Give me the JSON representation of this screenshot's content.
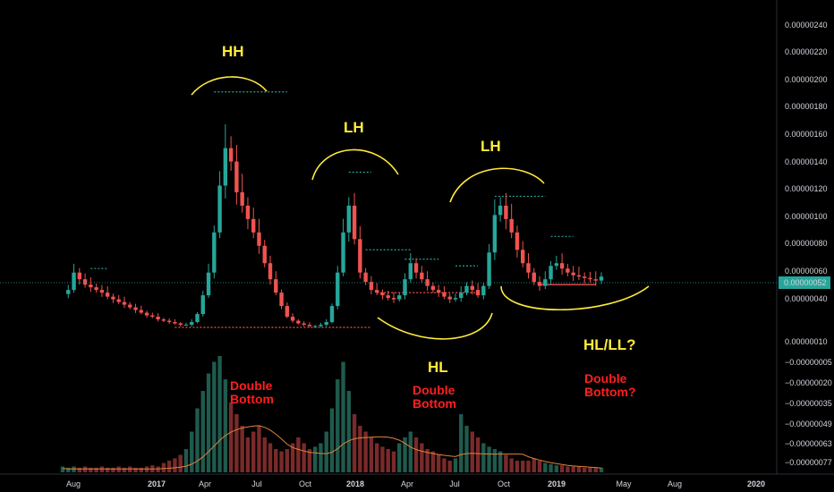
{
  "colors": {
    "background": "#000000",
    "up": "#26a69a",
    "down": "#ef5350",
    "annotation_yellow": "#ffeb3b",
    "annotation_red": "#ff1f1f",
    "ma_line": "#e0823a",
    "price_line": "#26a69a",
    "axis_text": "#d1d4dc"
  },
  "chart_data": {
    "type": "candlestick",
    "title": "",
    "price_axis": {
      "ticks": [
        "0.00000240",
        "0.00000220",
        "0.00000200",
        "0.00000180",
        "0.00000160",
        "0.00000140",
        "0.00000120",
        "0.00000100",
        "0.00000080",
        "0.00000060",
        "0.00000040",
        "0.00000010",
        "−0.00000005",
        "−0.00000020",
        "−0.00000035",
        "−0.00000049",
        "−0.00000063",
        "−0.00000077"
      ],
      "current_price": "0.00000052"
    },
    "time_axis": {
      "ticks": [
        {
          "label": "Aug",
          "bold": false
        },
        {
          "label": "2017",
          "bold": true
        },
        {
          "label": "Apr",
          "bold": false
        },
        {
          "label": "Jul",
          "bold": false
        },
        {
          "label": "Oct",
          "bold": false
        },
        {
          "label": "2018",
          "bold": true
        },
        {
          "label": "Apr",
          "bold": false
        },
        {
          "label": "Jul",
          "bold": false
        },
        {
          "label": "Oct",
          "bold": false
        },
        {
          "label": "2019",
          "bold": true
        },
        {
          "label": "May",
          "bold": false
        },
        {
          "label": "Aug",
          "bold": false
        },
        {
          "label": "2020",
          "bold": true
        }
      ]
    },
    "price_path": [
      0.39,
      0.42,
      0.55,
      0.5,
      0.46,
      0.44,
      0.42,
      0.4,
      0.37,
      0.35,
      0.33,
      0.31,
      0.29,
      0.27,
      0.25,
      0.23,
      0.22,
      0.2,
      0.19,
      0.18,
      0.17,
      0.16,
      0.16,
      0.18,
      0.24,
      0.38,
      0.55,
      0.85,
      1.2,
      1.48,
      1.38,
      1.15,
      1.05,
      0.95,
      0.85,
      0.75,
      0.62,
      0.5,
      0.4,
      0.3,
      0.22,
      0.19,
      0.17,
      0.16,
      0.15,
      0.15,
      0.16,
      0.18,
      0.3,
      0.55,
      0.85,
      1.05,
      0.8,
      0.55,
      0.48,
      0.42,
      0.4,
      0.38,
      0.36,
      0.35,
      0.38,
      0.5,
      0.62,
      0.55,
      0.5,
      0.45,
      0.42,
      0.4,
      0.37,
      0.35,
      0.36,
      0.4,
      0.45,
      0.42,
      0.38,
      0.45,
      0.7,
      0.98,
      1.05,
      0.95,
      0.85,
      0.72,
      0.62,
      0.55,
      0.48,
      0.45,
      0.5,
      0.6,
      0.62,
      0.58,
      0.55,
      0.53,
      0.52,
      0.51,
      0.5,
      0.49,
      0.52
    ],
    "volume_path": [
      0.05,
      0.04,
      0.05,
      0.04,
      0.05,
      0.04,
      0.04,
      0.05,
      0.04,
      0.04,
      0.05,
      0.04,
      0.05,
      0.04,
      0.04,
      0.05,
      0.06,
      0.05,
      0.08,
      0.1,
      0.12,
      0.15,
      0.2,
      0.35,
      0.55,
      0.7,
      0.85,
      0.95,
      1.0,
      0.8,
      0.6,
      0.5,
      0.4,
      0.3,
      0.35,
      0.4,
      0.3,
      0.25,
      0.2,
      0.18,
      0.2,
      0.25,
      0.3,
      0.25,
      0.2,
      0.22,
      0.25,
      0.35,
      0.55,
      0.8,
      0.95,
      0.7,
      0.5,
      0.4,
      0.35,
      0.3,
      0.25,
      0.22,
      0.2,
      0.18,
      0.25,
      0.3,
      0.35,
      0.3,
      0.25,
      0.2,
      0.18,
      0.15,
      0.12,
      0.1,
      0.12,
      0.5,
      0.4,
      0.35,
      0.3,
      0.25,
      0.22,
      0.2,
      0.18,
      0.15,
      0.12,
      0.1,
      0.1,
      0.1,
      0.12,
      0.1,
      0.08,
      0.07,
      0.06,
      0.06,
      0.05,
      0.05,
      0.05,
      0.04,
      0.04,
      0.04,
      0.04
    ],
    "support_resistance": [
      {
        "from": 0.58,
        "to": 0.58,
        "price": 0.58,
        "color": "#26a69a",
        "style": "dotted",
        "x0": 5,
        "x1": 8
      },
      {
        "price": 1.9,
        "color": "#26a69a",
        "style": "dotted",
        "x0": 27,
        "x1": 40
      },
      {
        "price": 1.3,
        "color": "#26a69a",
        "style": "dotted",
        "x0": 51,
        "x1": 55
      },
      {
        "price": 0.72,
        "color": "#26a69a",
        "style": "dotted",
        "x0": 54,
        "x1": 62
      },
      {
        "price": 0.65,
        "color": "#26a69a",
        "style": "dotted",
        "x0": 61,
        "x1": 67
      },
      {
        "price": 0.6,
        "color": "#26a69a",
        "style": "dotted",
        "x0": 70,
        "x1": 74
      },
      {
        "price": 1.12,
        "color": "#26a69a",
        "style": "dotted",
        "x0": 77,
        "x1": 86
      },
      {
        "price": 0.82,
        "color": "#26a69a",
        "style": "dotted",
        "x0": 87,
        "x1": 91
      },
      {
        "price": 0.14,
        "color": "#ef5350",
        "style": "dotted",
        "x0": 20,
        "x1": 55
      },
      {
        "price": 0.4,
        "color": "#ef5350",
        "style": "dotted",
        "x0": 56,
        "x1": 74
      },
      {
        "price": 0.46,
        "color": "#ef5350",
        "style": "solid",
        "x0": 85,
        "x1": 95
      }
    ],
    "annotations": [
      {
        "text": "HH",
        "color": "yellow"
      },
      {
        "text": "LH",
        "color": "yellow"
      },
      {
        "text": "LH",
        "color": "yellow"
      },
      {
        "text": "HL",
        "color": "yellow"
      },
      {
        "text": "HL/LL?",
        "color": "yellow"
      },
      {
        "text": "Double",
        "color": "red"
      },
      {
        "text": "Bottom",
        "color": "red"
      },
      {
        "text": "Double",
        "color": "red"
      },
      {
        "text": "Bottom",
        "color": "red"
      },
      {
        "text": "Double",
        "color": "red"
      },
      {
        "text": "Bottom?",
        "color": "red"
      }
    ]
  }
}
